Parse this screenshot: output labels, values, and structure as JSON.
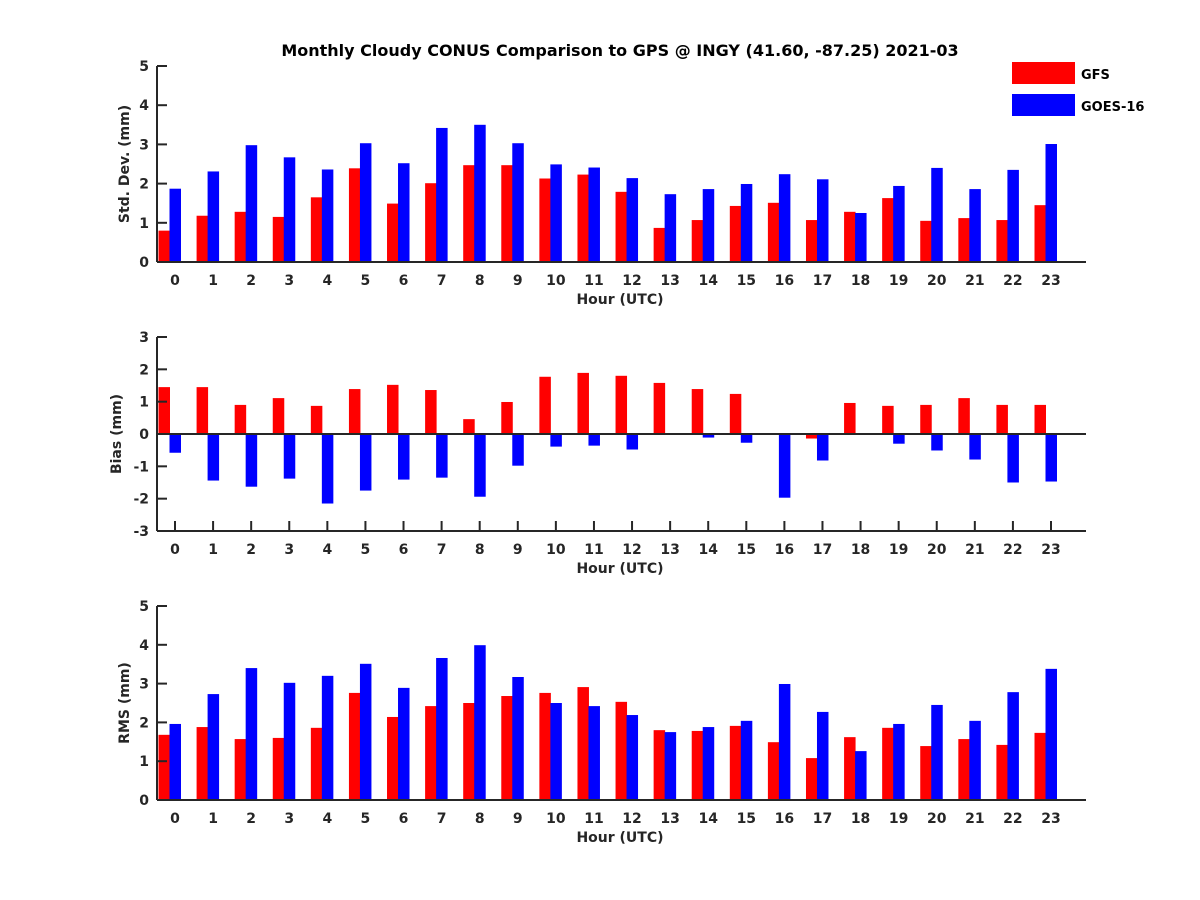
{
  "chart_data": {
    "type": "bar",
    "title": "Monthly Cloudy CONUS Comparison to GPS @ INGY (41.60, -87.25) 2021-03",
    "legend": {
      "placement": "top-right",
      "entries": [
        {
          "name": "GFS",
          "color": "#ff0000"
        },
        {
          "name": "GOES-16",
          "color": "#0000ff"
        }
      ]
    },
    "categories": [
      "0",
      "1",
      "2",
      "3",
      "4",
      "5",
      "6",
      "7",
      "8",
      "9",
      "10",
      "11",
      "12",
      "13",
      "14",
      "15",
      "16",
      "17",
      "18",
      "19",
      "20",
      "21",
      "22",
      "23"
    ],
    "panels": [
      {
        "id": "stddev",
        "ylabel": "Std. Dev. (mm)",
        "xlabel": "Hour (UTC)",
        "ylim": [
          0,
          5
        ],
        "yticks": [
          0,
          1,
          2,
          3,
          4,
          5
        ],
        "show_xticks": false,
        "series": [
          {
            "name": "GFS",
            "values": [
              0.8,
              1.18,
              1.28,
              1.15,
              1.65,
              2.39,
              1.49,
              2.01,
              2.47,
              2.47,
              2.13,
              2.23,
              1.79,
              0.87,
              1.07,
              1.43,
              1.51,
              1.07,
              1.28,
              1.63,
              1.05,
              1.12,
              1.07,
              1.45
            ]
          },
          {
            "name": "GOES-16",
            "values": [
              1.87,
              2.31,
              2.98,
              2.67,
              2.36,
              3.03,
              2.52,
              3.42,
              3.5,
              3.03,
              2.49,
              2.41,
              2.14,
              1.73,
              1.86,
              1.99,
              2.24,
              2.11,
              1.25,
              1.94,
              2.4,
              1.86,
              2.35,
              3.01
            ]
          }
        ]
      },
      {
        "id": "bias",
        "ylabel": "Bias (mm)",
        "xlabel": "Hour (UTC)",
        "ylim": [
          -3,
          3
        ],
        "yticks": [
          -3,
          -2,
          -1,
          0,
          1,
          2,
          3
        ],
        "show_xticks": true,
        "series": [
          {
            "name": "GFS",
            "values": [
              1.45,
              1.45,
              0.9,
              1.11,
              0.87,
              1.39,
              1.52,
              1.36,
              0.46,
              0.99,
              1.77,
              1.89,
              1.8,
              1.58,
              1.39,
              1.24,
              0.03,
              -0.14,
              0.96,
              0.87,
              0.9,
              1.11,
              0.9,
              0.9
            ]
          },
          {
            "name": "GOES-16",
            "values": [
              -0.58,
              -1.44,
              -1.63,
              -1.38,
              -2.15,
              -1.75,
              -1.41,
              -1.35,
              -1.94,
              -0.98,
              -0.39,
              -0.36,
              -0.48,
              0.0,
              -0.11,
              -0.27,
              -1.97,
              -0.82,
              0.0,
              -0.3,
              -0.51,
              -0.79,
              -1.5,
              -1.47
            ]
          }
        ]
      },
      {
        "id": "rms",
        "ylabel": "RMS (mm)",
        "xlabel": "Hour (UTC)",
        "ylim": [
          0,
          5
        ],
        "yticks": [
          0,
          1,
          2,
          3,
          4,
          5
        ],
        "show_xticks": false,
        "series": [
          {
            "name": "GFS",
            "values": [
              1.68,
              1.88,
              1.57,
              1.6,
              1.86,
              2.76,
              2.14,
              2.42,
              2.5,
              2.68,
              2.76,
              2.91,
              2.53,
              1.8,
              1.78,
              1.91,
              1.49,
              1.08,
              1.62,
              1.86,
              1.39,
              1.57,
              1.42,
              1.73
            ]
          },
          {
            "name": "GOES-16",
            "values": [
              1.96,
              2.73,
              3.4,
              3.02,
              3.2,
              3.51,
              2.89,
              3.66,
              3.99,
              3.17,
              2.5,
              2.42,
              2.19,
              1.75,
              1.88,
              2.04,
              2.99,
              2.27,
              1.26,
              1.96,
              2.45,
              2.04,
              2.78,
              3.38
            ]
          }
        ]
      }
    ]
  }
}
